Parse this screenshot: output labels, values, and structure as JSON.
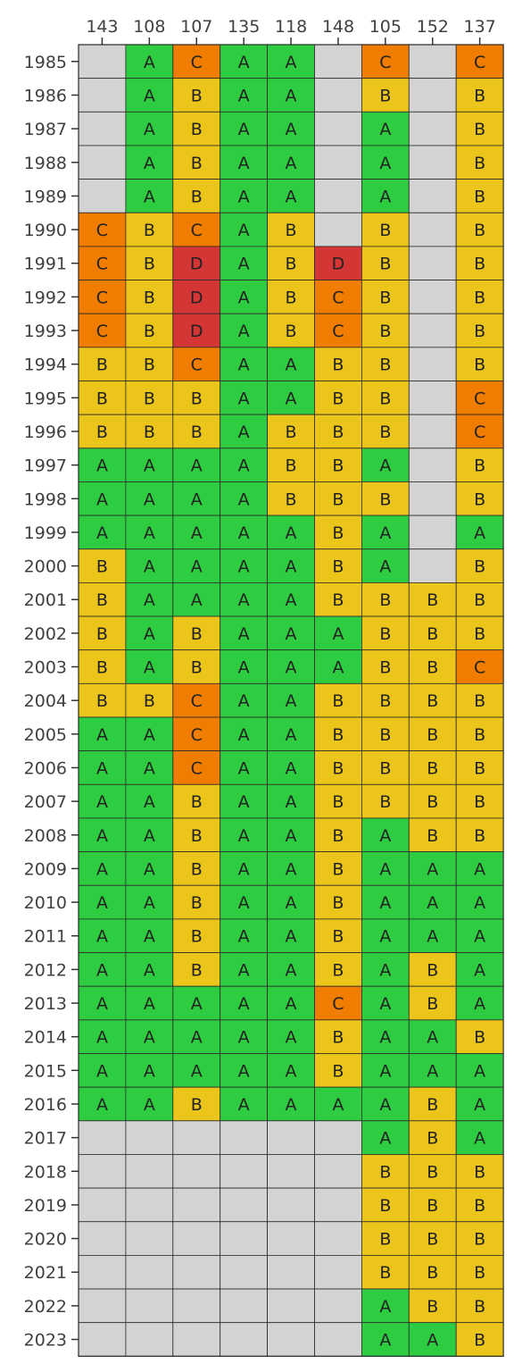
{
  "chart_data": {
    "type": "heatmap",
    "title": "",
    "xlabel": "",
    "ylabel": "",
    "columns": [
      "143",
      "108",
      "107",
      "135",
      "118",
      "148",
      "105",
      "152",
      "137"
    ],
    "rows": [
      "1985",
      "1986",
      "1987",
      "1988",
      "1989",
      "1990",
      "1991",
      "1992",
      "1993",
      "1994",
      "1995",
      "1996",
      "1997",
      "1998",
      "1999",
      "2000",
      "2001",
      "2002",
      "2003",
      "2004",
      "2005",
      "2006",
      "2007",
      "2008",
      "2009",
      "2010",
      "2011",
      "2012",
      "2013",
      "2014",
      "2015",
      "2016",
      "2017",
      "2018",
      "2019",
      "2020",
      "2021",
      "2022",
      "2023"
    ],
    "values": [
      [
        "",
        "A",
        "C",
        "A",
        "A",
        "",
        "C",
        "",
        "C"
      ],
      [
        "",
        "A",
        "B",
        "A",
        "A",
        "",
        "B",
        "",
        "B"
      ],
      [
        "",
        "A",
        "B",
        "A",
        "A",
        "",
        "A",
        "",
        "B"
      ],
      [
        "",
        "A",
        "B",
        "A",
        "A",
        "",
        "A",
        "",
        "B"
      ],
      [
        "",
        "A",
        "B",
        "A",
        "A",
        "",
        "A",
        "",
        "B"
      ],
      [
        "C",
        "B",
        "C",
        "A",
        "B",
        "",
        "B",
        "",
        "B"
      ],
      [
        "C",
        "B",
        "D",
        "A",
        "B",
        "D",
        "B",
        "",
        "B"
      ],
      [
        "C",
        "B",
        "D",
        "A",
        "B",
        "C",
        "B",
        "",
        "B"
      ],
      [
        "C",
        "B",
        "D",
        "A",
        "B",
        "C",
        "B",
        "",
        "B"
      ],
      [
        "B",
        "B",
        "C",
        "A",
        "A",
        "B",
        "B",
        "",
        "B"
      ],
      [
        "B",
        "B",
        "B",
        "A",
        "A",
        "B",
        "B",
        "",
        "C"
      ],
      [
        "B",
        "B",
        "B",
        "A",
        "B",
        "B",
        "B",
        "",
        "C"
      ],
      [
        "A",
        "A",
        "A",
        "A",
        "B",
        "B",
        "A",
        "",
        "B"
      ],
      [
        "A",
        "A",
        "A",
        "A",
        "B",
        "B",
        "B",
        "",
        "B"
      ],
      [
        "A",
        "A",
        "A",
        "A",
        "A",
        "B",
        "A",
        "",
        "A"
      ],
      [
        "B",
        "A",
        "A",
        "A",
        "A",
        "B",
        "A",
        "",
        "B"
      ],
      [
        "B",
        "A",
        "A",
        "A",
        "A",
        "B",
        "B",
        "B",
        "B"
      ],
      [
        "B",
        "A",
        "B",
        "A",
        "A",
        "A",
        "B",
        "B",
        "B"
      ],
      [
        "B",
        "A",
        "B",
        "A",
        "A",
        "A",
        "B",
        "B",
        "C"
      ],
      [
        "B",
        "B",
        "C",
        "A",
        "A",
        "B",
        "B",
        "B",
        "B"
      ],
      [
        "A",
        "A",
        "C",
        "A",
        "A",
        "B",
        "B",
        "B",
        "B"
      ],
      [
        "A",
        "A",
        "C",
        "A",
        "A",
        "B",
        "B",
        "B",
        "B"
      ],
      [
        "A",
        "A",
        "B",
        "A",
        "A",
        "B",
        "B",
        "B",
        "B"
      ],
      [
        "A",
        "A",
        "B",
        "A",
        "A",
        "B",
        "A",
        "B",
        "B"
      ],
      [
        "A",
        "A",
        "B",
        "A",
        "A",
        "B",
        "A",
        "A",
        "A"
      ],
      [
        "A",
        "A",
        "B",
        "A",
        "A",
        "B",
        "A",
        "A",
        "A"
      ],
      [
        "A",
        "A",
        "B",
        "A",
        "A",
        "B",
        "A",
        "A",
        "A"
      ],
      [
        "A",
        "A",
        "B",
        "A",
        "A",
        "B",
        "A",
        "B",
        "A"
      ],
      [
        "A",
        "A",
        "A",
        "A",
        "A",
        "C",
        "A",
        "B",
        "A"
      ],
      [
        "A",
        "A",
        "A",
        "A",
        "A",
        "B",
        "A",
        "A",
        "B"
      ],
      [
        "A",
        "A",
        "A",
        "A",
        "A",
        "B",
        "A",
        "A",
        "A"
      ],
      [
        "A",
        "A",
        "B",
        "A",
        "A",
        "A",
        "A",
        "B",
        "A"
      ],
      [
        "",
        "",
        "",
        "",
        "",
        "",
        "A",
        "B",
        "A"
      ],
      [
        "",
        "",
        "",
        "",
        "",
        "",
        "B",
        "B",
        "B"
      ],
      [
        "",
        "",
        "",
        "",
        "",
        "",
        "B",
        "B",
        "B"
      ],
      [
        "",
        "",
        "",
        "",
        "",
        "",
        "B",
        "B",
        "B"
      ],
      [
        "",
        "",
        "",
        "",
        "",
        "",
        "B",
        "B",
        "B"
      ],
      [
        "",
        "",
        "",
        "",
        "",
        "",
        "A",
        "B",
        "B"
      ],
      [
        "",
        "",
        "",
        "",
        "",
        "",
        "A",
        "A",
        "B"
      ]
    ],
    "colors": {
      "A": "#2ecc40",
      "B": "#ecc51a",
      "C": "#f07c00",
      "D": "#d43535",
      "empty": "#d3d3d3"
    },
    "grid_color": "#2a2a2a",
    "label_color": "#404040",
    "x_axis_position": "top",
    "legend": "none"
  }
}
